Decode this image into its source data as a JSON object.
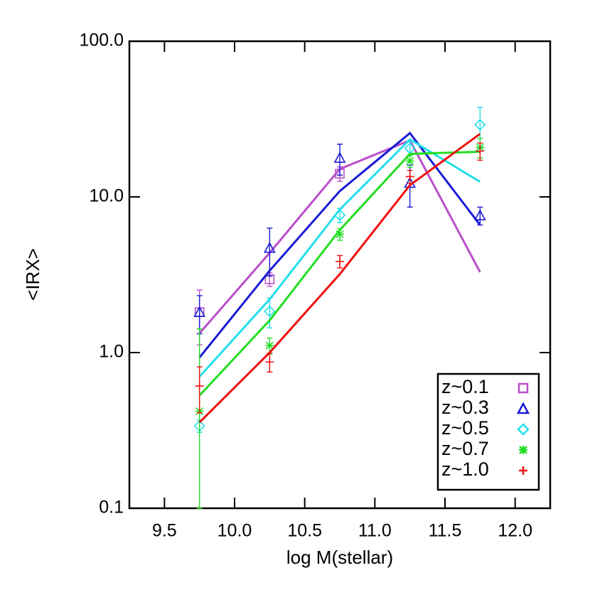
{
  "chart_data": {
    "type": "scatter",
    "xlabel": "log M(stellar)",
    "ylabel": "<IRX>",
    "x": [
      9.75,
      10.25,
      10.75,
      11.25,
      11.75
    ],
    "xlim": [
      9.25,
      12.25
    ],
    "xticks": [
      9.5,
      {
        "value": 10,
        "label": "10.0"
      },
      10.5,
      {
        "value": 11,
        "label": "11.0"
      },
      11.5,
      {
        "value": 12,
        "label": "12.0"
      }
    ],
    "ylim": [
      0.1,
      100
    ],
    "yticks": [
      0.1,
      {
        "value": 1,
        "label": "1.0"
      },
      {
        "value": 10,
        "label": "10.0"
      },
      {
        "value": 100,
        "label": "100.0"
      }
    ],
    "ylog": true,
    "legend": "lower right",
    "series": [
      {
        "name": "z~0.1",
        "color": "#b94fc9",
        "marker": "square",
        "values": [
          1.82,
          2.96,
          14.1,
          null,
          null
        ],
        "errors": [
          0.7,
          0.3,
          1.5,
          null,
          null
        ],
        "model": [
          1.33,
          4.37,
          15.1,
          23.1,
          3.29
        ]
      },
      {
        "name": "z~0.3",
        "color": "#1a1ad6",
        "marker": "triangle",
        "values": [
          1.82,
          4.7,
          17.8,
          12.3,
          7.6
        ],
        "errors": [
          0.5,
          1.6,
          4,
          3.7,
          1.0
        ],
        "model": [
          0.93,
          3.36,
          10.9,
          25.7,
          6.6
        ]
      },
      {
        "name": "z~0.5",
        "color": "#22e0ea",
        "marker": "diamond",
        "values": [
          0.338,
          1.84,
          7.63,
          20.5,
          29.1
        ],
        "errors": [
          0.03,
          0.4,
          0.8,
          2,
          8.5
        ],
        "model": [
          0.7,
          2.2,
          8.3,
          23.4,
          12.5
        ]
      },
      {
        "name": "z~0.7",
        "color": "#22dd22",
        "marker": "asterisk",
        "values": [
          0.42,
          1.11,
          5.76,
          17.0,
          20.8
        ],
        "errors": [
          1.0,
          0.13,
          0.5,
          1.5,
          3
        ],
        "model": [
          0.53,
          1.61,
          6.13,
          18.9,
          19.5
        ]
      },
      {
        "name": "z~1.0",
        "color": "#ee1111",
        "marker": "plus",
        "values": [
          0.61,
          0.87,
          3.85,
          13.5,
          19.7
        ],
        "errors": [
          0.2,
          0.12,
          0.35,
          1.3,
          2.5
        ],
        "model": [
          0.356,
          1.0,
          3.19,
          11.9,
          25.4
        ]
      }
    ]
  }
}
